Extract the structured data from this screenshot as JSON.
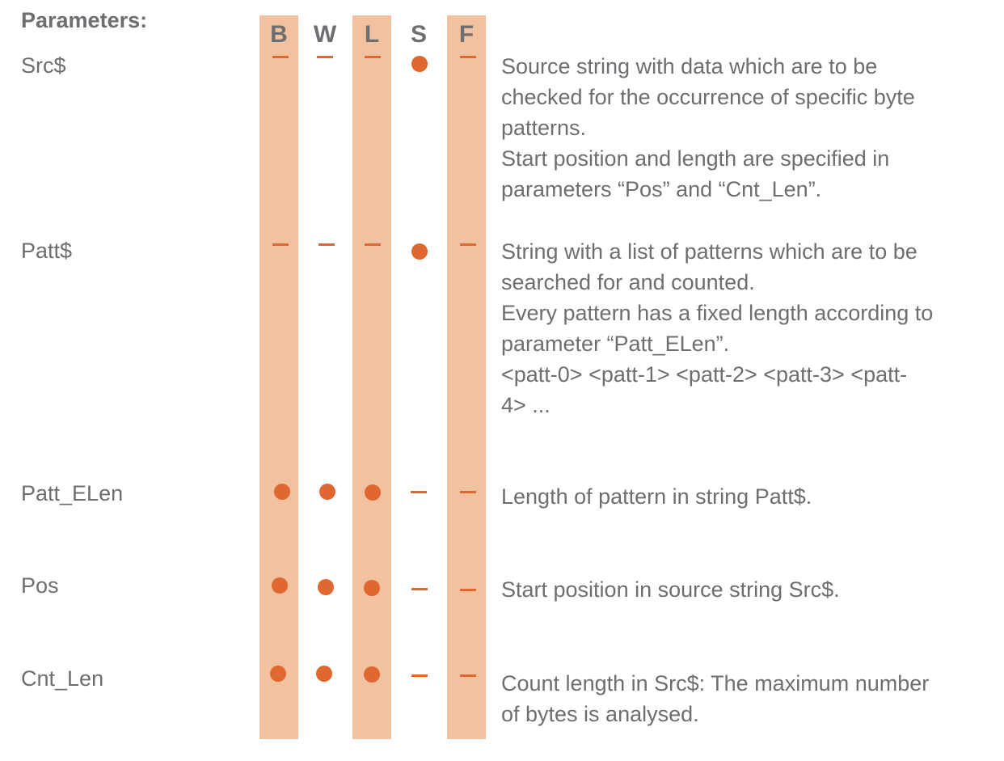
{
  "heading": "Parameters:",
  "columns": [
    "B",
    "W",
    "L",
    "S",
    "F"
  ],
  "accent_color": "#e0672f",
  "band_color": "#f2c19f",
  "parameters": [
    {
      "name": "Src$",
      "types": [
        "dash",
        "dash",
        "dash",
        "dot",
        "dash"
      ],
      "description": [
        "Source string with data which are to be",
        "checked for the occurrence of specific byte",
        "patterns.",
        "Start position and length are specified in",
        "parameters “Pos” and “Cnt_Len”."
      ]
    },
    {
      "name": "Patt$",
      "types": [
        "dash",
        "dash",
        "dash",
        "dot",
        "dash"
      ],
      "description": [
        "String with a list of patterns which are to be",
        "searched for and counted.",
        "Every pattern has a fixed length according to",
        "parameter “Patt_ELen”.",
        "<patt-0> <patt-1> <patt-2> <patt-3> <patt-",
        "4> ..."
      ]
    },
    {
      "name": "Patt_ELen",
      "types": [
        "dot",
        "dot",
        "dot",
        "dash",
        "dash"
      ],
      "description": [
        "Length of pattern in string Patt$."
      ]
    },
    {
      "name": "Pos",
      "types": [
        "dot",
        "dot",
        "dot",
        "dash",
        "dash"
      ],
      "description": [
        "Start position in source string Src$."
      ]
    },
    {
      "name": "Cnt_Len",
      "types": [
        "dot",
        "dot",
        "dot",
        "dash",
        "dash"
      ],
      "description": [
        "Count length in Src$: The maximum number",
        "of bytes is analysed."
      ]
    }
  ]
}
